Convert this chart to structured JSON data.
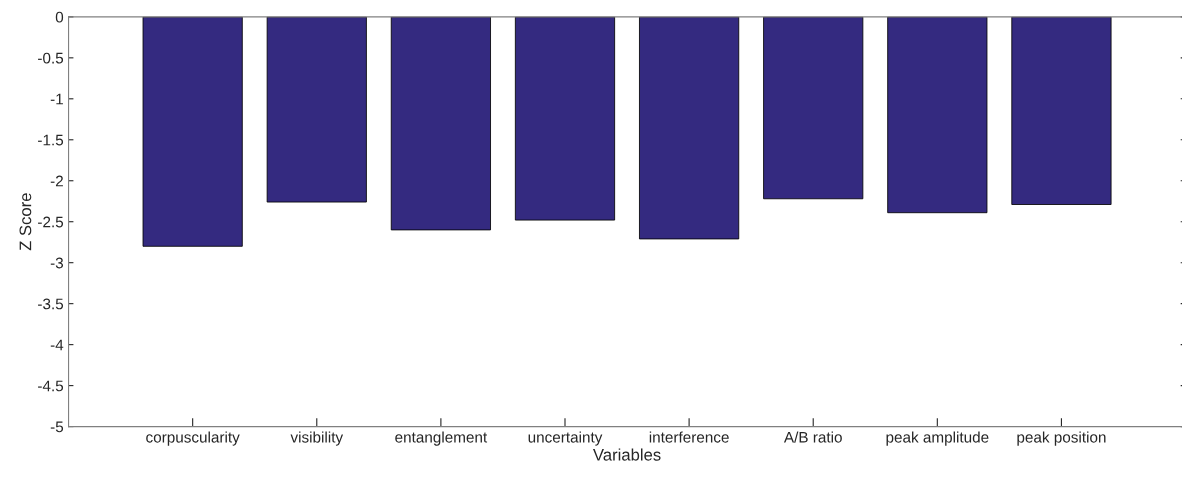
{
  "chart_data": {
    "type": "bar",
    "xlabel": "Variables",
    "ylabel": "Z Score",
    "categories": [
      "corpuscularity",
      "visibility",
      "entanglement",
      "uncertainty",
      "interference",
      "A/B ratio",
      "peak amplitude",
      "peak position"
    ],
    "values": [
      -2.8,
      -2.26,
      -2.6,
      -2.48,
      -2.71,
      -2.22,
      -2.39,
      -2.29
    ],
    "color": "#342a80",
    "ylim": [
      -5,
      0
    ],
    "yticks": [
      -5,
      -4.5,
      -4,
      -3.5,
      -3,
      -2.5,
      -2,
      -1.5,
      -1,
      -0.5,
      0
    ],
    "grid": false
  }
}
